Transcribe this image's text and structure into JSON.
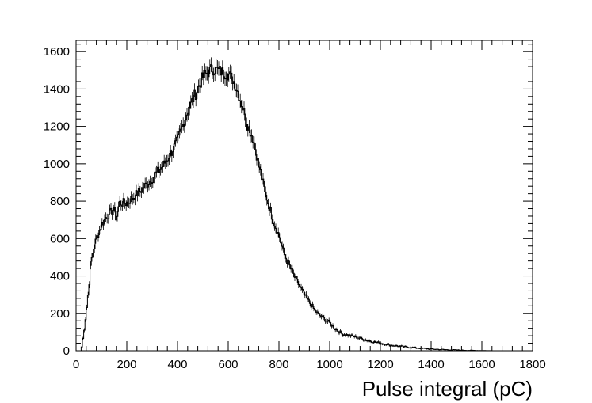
{
  "chart_data": {
    "type": "histogram",
    "title": "",
    "xlabel": "Pulse integral (pC)",
    "ylabel": "",
    "xlim": [
      0,
      1800
    ],
    "ylim": [
      0,
      1660
    ],
    "x_ticks": [
      0,
      200,
      400,
      600,
      800,
      1000,
      1200,
      1400,
      1600,
      1800
    ],
    "y_ticks": [
      0,
      200,
      400,
      600,
      800,
      1000,
      1200,
      1400,
      1600
    ],
    "x_tick_labels": [
      "0",
      "200",
      "400",
      "600",
      "800",
      "1000",
      "1200",
      "1400",
      "1600",
      "1800"
    ],
    "y_tick_labels": [
      "0",
      "200",
      "400",
      "600",
      "800",
      "1000",
      "1200",
      "1400",
      "1600"
    ],
    "grid": false,
    "legend": "none",
    "line_color": "#000000",
    "error_bars": true,
    "bin_width": 5,
    "shape_points": {
      "x": [
        0,
        20,
        25,
        30,
        40,
        50,
        60,
        80,
        100,
        120,
        140,
        150,
        160,
        170,
        200,
        250,
        300,
        350,
        400,
        420,
        440,
        460,
        480,
        500,
        520,
        540,
        560,
        580,
        600,
        620,
        640,
        660,
        680,
        700,
        720,
        740,
        760,
        780,
        800,
        820,
        840,
        860,
        880,
        900,
        920,
        940,
        960,
        980,
        1000,
        1020,
        1050,
        1100,
        1150,
        1200,
        1250,
        1300,
        1350,
        1400,
        1450,
        1500,
        1550,
        1600,
        1660,
        1661
      ],
      "y": [
        0,
        0,
        40,
        90,
        200,
        330,
        480,
        600,
        670,
        720,
        740,
        760,
        700,
        790,
        790,
        850,
        920,
        1000,
        1120,
        1200,
        1280,
        1340,
        1400,
        1460,
        1490,
        1510,
        1500,
        1490,
        1480,
        1450,
        1380,
        1290,
        1200,
        1130,
        1000,
        880,
        780,
        690,
        620,
        520,
        460,
        400,
        350,
        300,
        260,
        220,
        190,
        170,
        150,
        120,
        90,
        75,
        55,
        40,
        28,
        20,
        14,
        9,
        6,
        4,
        2,
        1,
        0,
        0
      ]
    }
  }
}
